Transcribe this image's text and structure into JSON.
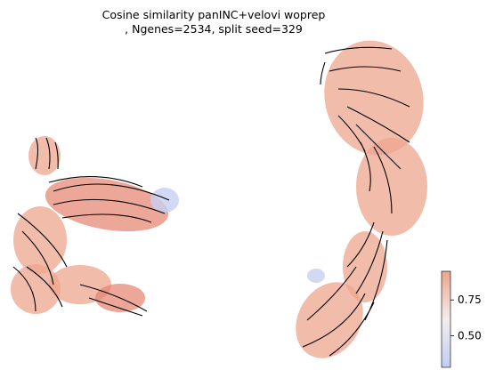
{
  "chart_data": {
    "type": "scatter",
    "title": [
      "Cosine similarity panINC+velovi woprep",
      ", Ngenes=2534, split seed=329"
    ],
    "colorbar": {
      "clim": [
        0.28,
        0.95
      ],
      "ticks": [
        {
          "value": 0.5,
          "label": "0.50"
        },
        {
          "value": 0.75,
          "label": "0.75"
        }
      ],
      "colors": [
        "#c3cdf3",
        "#f3eeec",
        "#eba48e"
      ]
    }
  }
}
